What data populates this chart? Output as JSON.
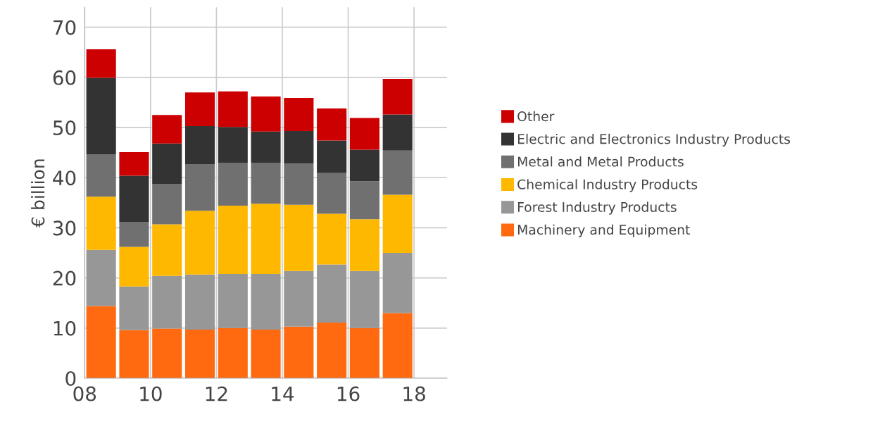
{
  "chart_data": {
    "type": "bar",
    "stacked": true,
    "ylabel": "€ billion",
    "x": [
      8.5,
      9.5,
      10.5,
      11.5,
      12.5,
      13.5,
      14.5,
      15.5,
      16.5,
      17.5
    ],
    "series": [
      {
        "name": "Machinery and Equipment",
        "color": "#ff6a10",
        "values": [
          14.4,
          9.6,
          9.9,
          9.7,
          10.0,
          9.7,
          10.3,
          11.1,
          10.0,
          13.0
        ]
      },
      {
        "name": "Forest Industry Products",
        "color": "#979797",
        "values": [
          11.2,
          8.7,
          10.5,
          11.0,
          10.8,
          11.1,
          11.1,
          11.6,
          11.4,
          12.0
        ]
      },
      {
        "name": "Chemical Industry Products",
        "color": "#ffb800",
        "values": [
          10.6,
          7.9,
          10.3,
          12.7,
          13.6,
          14.0,
          13.2,
          10.1,
          10.3,
          11.6
        ]
      },
      {
        "name": "Metal and Metal Products",
        "color": "#707070",
        "values": [
          8.4,
          4.9,
          8.0,
          9.3,
          8.6,
          8.2,
          8.2,
          8.1,
          7.6,
          8.8
        ]
      },
      {
        "name": "Electric and Electronics Industry Products",
        "color": "#333333",
        "values": [
          15.3,
          9.3,
          8.1,
          7.6,
          7.1,
          6.2,
          6.5,
          6.5,
          6.3,
          7.2
        ]
      },
      {
        "name": "Other",
        "color": "#cc0000",
        "values": [
          5.7,
          4.7,
          5.7,
          6.7,
          7.1,
          7.0,
          6.6,
          6.4,
          6.3,
          7.1
        ]
      }
    ],
    "xlim": [
      8,
      19
    ],
    "xticks": [
      {
        "value": 8,
        "label": "08"
      },
      {
        "value": 10,
        "label": "10"
      },
      {
        "value": 12,
        "label": "12"
      },
      {
        "value": 14,
        "label": "14"
      },
      {
        "value": 16,
        "label": "16"
      },
      {
        "value": 18,
        "label": "18"
      }
    ],
    "ylim": [
      0,
      74
    ],
    "yticks": [
      0,
      10,
      20,
      30,
      40,
      50,
      60,
      70
    ],
    "grid": true,
    "legend": "right"
  }
}
